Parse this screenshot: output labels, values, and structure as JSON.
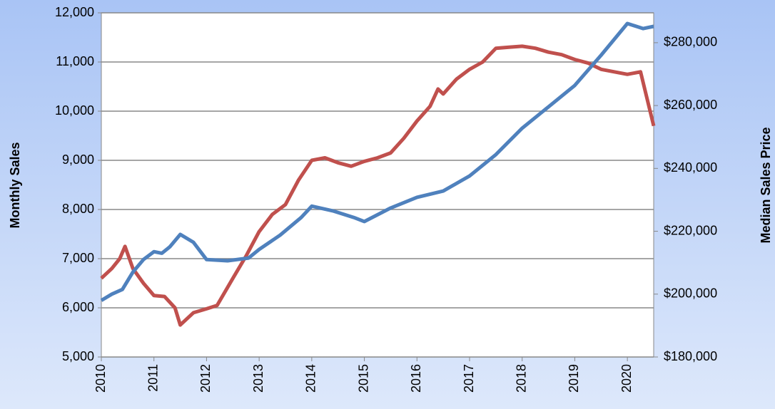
{
  "chart_data": {
    "type": "line",
    "y_label": "Monthly Sales",
    "y2_label": "Median Sales Price",
    "xlim": [
      2010,
      2020.5
    ],
    "xticks": [
      2010,
      2011,
      2012,
      2013,
      2014,
      2015,
      2016,
      2017,
      2018,
      2019,
      2020
    ],
    "ylim": [
      5000,
      12000
    ],
    "yticks": [
      {
        "value": 5000,
        "label": "5,000"
      },
      {
        "value": 6000,
        "label": "6,000"
      },
      {
        "value": 7000,
        "label": "7,000"
      },
      {
        "value": 8000,
        "label": "8,000"
      },
      {
        "value": 9000,
        "label": "9,000"
      },
      {
        "value": 10000,
        "label": "10,000"
      },
      {
        "value": 11000,
        "label": "11,000"
      },
      {
        "value": 12000,
        "label": "12,000"
      }
    ],
    "y2lim": [
      180000,
      289500
    ],
    "y2ticks": [
      {
        "value": 180000,
        "label": "$180,000"
      },
      {
        "value": 200000,
        "label": "$200,000"
      },
      {
        "value": 220000,
        "label": "$220,000"
      },
      {
        "value": 240000,
        "label": "$240,000"
      },
      {
        "value": 260000,
        "label": "$260,000"
      },
      {
        "value": 280000,
        "label": "$280,000"
      }
    ],
    "grid": true,
    "series": [
      {
        "name": "Monthly Sales",
        "color": "#c0504d",
        "axis": "y",
        "x": [
          2010.0,
          2010.2,
          2010.35,
          2010.45,
          2010.6,
          2010.8,
          2011.0,
          2011.2,
          2011.4,
          2011.5,
          2011.75,
          2012.0,
          2012.2,
          2012.5,
          2012.75,
          2013.0,
          2013.25,
          2013.5,
          2013.75,
          2014.0,
          2014.25,
          2014.5,
          2014.75,
          2015.0,
          2015.25,
          2015.5,
          2015.75,
          2016.0,
          2016.25,
          2016.4,
          2016.5,
          2016.75,
          2017.0,
          2017.25,
          2017.5,
          2017.75,
          2018.0,
          2018.25,
          2018.5,
          2018.75,
          2019.0,
          2019.25,
          2019.5,
          2019.75,
          2020.0,
          2020.25,
          2020.5
        ],
        "values": [
          6600,
          6800,
          7000,
          7250,
          6800,
          6500,
          6250,
          6230,
          6000,
          5650,
          5900,
          5980,
          6050,
          6600,
          7050,
          7550,
          7900,
          8100,
          8600,
          9000,
          9050,
          8950,
          8880,
          8980,
          9050,
          9150,
          9450,
          9800,
          10100,
          10450,
          10350,
          10650,
          10850,
          11000,
          11280,
          11300,
          11320,
          11280,
          11200,
          11150,
          11050,
          10980,
          10850,
          10800,
          10750,
          10800,
          9700
        ]
      },
      {
        "name": "Median Sales Price",
        "color": "#4f81bd",
        "axis": "y2",
        "x": [
          2010.0,
          2010.2,
          2010.4,
          2010.6,
          2010.8,
          2011.0,
          2011.15,
          2011.3,
          2011.5,
          2011.75,
          2012.0,
          2012.4,
          2012.8,
          2013.0,
          2013.4,
          2013.8,
          2014.0,
          2014.4,
          2014.8,
          2015.0,
          2015.5,
          2016.0,
          2016.5,
          2017.0,
          2017.5,
          2018.0,
          2018.5,
          2019.0,
          2019.5,
          2020.0,
          2020.3,
          2020.5
        ],
        "values": [
          198000,
          200000,
          201500,
          207000,
          211000,
          213500,
          213000,
          215000,
          219000,
          216500,
          211000,
          210600,
          211500,
          214200,
          218800,
          224400,
          228000,
          226500,
          224400,
          223100,
          227400,
          230800,
          232800,
          237600,
          244400,
          252800,
          259600,
          266400,
          276000,
          286100,
          284500,
          285200
        ]
      }
    ]
  }
}
